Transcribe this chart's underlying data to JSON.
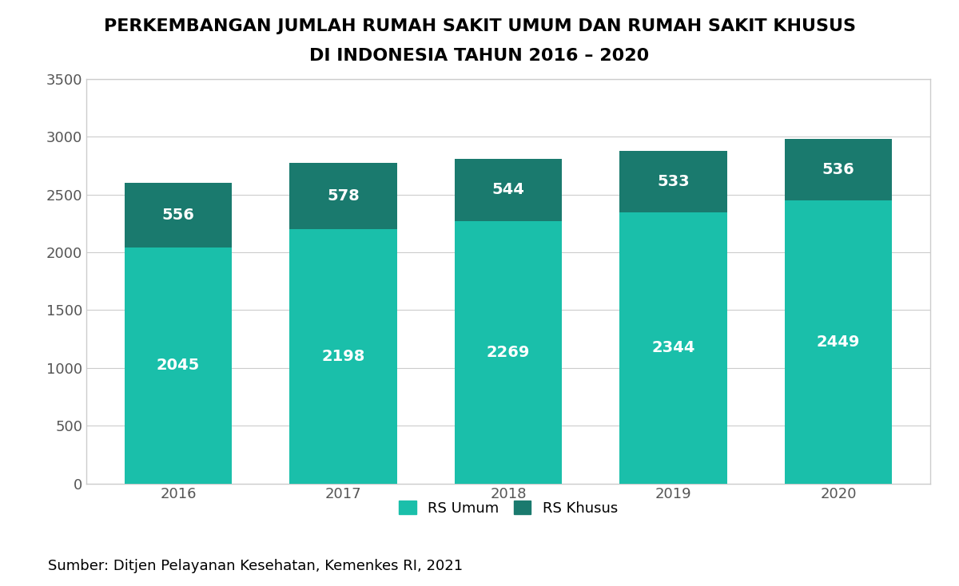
{
  "title_line1": "PERKEMBANGAN JUMLAH RUMAH SAKIT UMUM DAN RUMAH SAKIT KHUSUS",
  "title_line2": "DI INDONESIA TAHUN 2016 – 2020",
  "years": [
    "2016",
    "2017",
    "2018",
    "2019",
    "2020"
  ],
  "rs_umum": [
    2045,
    2198,
    2269,
    2344,
    2449
  ],
  "rs_khusus": [
    556,
    578,
    544,
    533,
    536
  ],
  "color_umum": "#1ABFAA",
  "color_khusus": "#1A7A6E",
  "label_umum": "RS Umum",
  "label_khusus": "RS Khusus",
  "ylim": [
    0,
    3500
  ],
  "yticks": [
    0,
    500,
    1000,
    1500,
    2000,
    2500,
    3000,
    3500
  ],
  "source_text": "Sumber: Ditjen Pelayanan Kesehatan, Kemenkes RI, 2021",
  "bg_color": "#FFFFFF",
  "plot_bg_color": "#FFFFFF",
  "title_fontsize": 16,
  "label_fontsize": 14,
  "tick_fontsize": 13,
  "legend_fontsize": 13,
  "source_fontsize": 13,
  "bar_width": 0.65,
  "grid_color": "#CCCCCC",
  "spine_color": "#CCCCCC",
  "tick_color": "#555555",
  "title_color": "#000000"
}
